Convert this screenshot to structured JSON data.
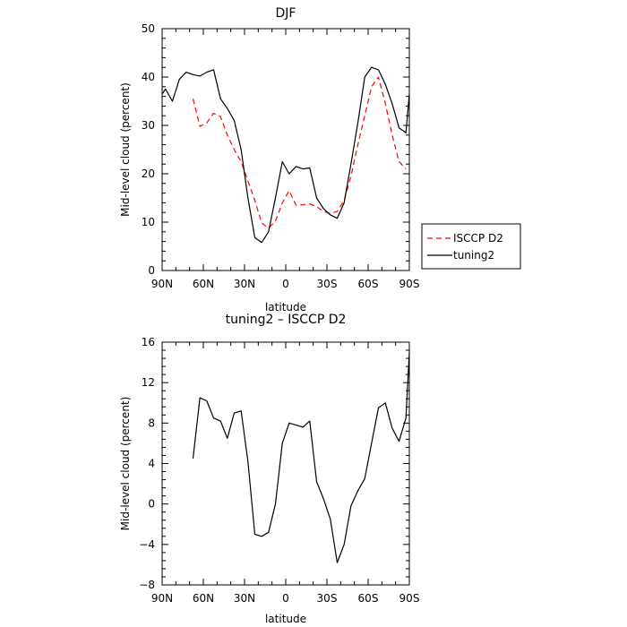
{
  "chart_data": [
    {
      "type": "line",
      "title": "DJF",
      "xlabel": "latitude",
      "ylabel": "Mid-level cloud (percent)",
      "xlim": [
        -90,
        90
      ],
      "ylim": [
        0,
        50
      ],
      "x_ticks": [
        -90,
        -60,
        -30,
        0,
        30,
        60,
        90
      ],
      "x_tick_labels": [
        "90N",
        "60N",
        "30N",
        "0",
        "30S",
        "60S",
        "90S"
      ],
      "y_ticks": [
        0,
        10,
        20,
        30,
        40,
        50
      ],
      "y_tick_labels": [
        "0",
        "10",
        "20",
        "30",
        "40",
        "50"
      ],
      "grid": false,
      "legend": {
        "position": "right",
        "entries": [
          "ISCCP D2",
          "tuning2"
        ]
      },
      "series": [
        {
          "name": "ISCCP D2",
          "color": "#ff0000",
          "line_style": "dashed",
          "x": [
            -67.5,
            -62.5,
            -57.5,
            -52.5,
            -47.5,
            -42.5,
            -37.5,
            -32.5,
            -27.5,
            -22.5,
            -17.5,
            -12.5,
            -7.5,
            -2.5,
            2.5,
            7.5,
            12.5,
            17.5,
            22.5,
            27.5,
            32.5,
            37.5,
            42.5,
            47.5,
            52.5,
            57.5,
            62.5,
            67.5,
            72.5,
            77.5,
            82.5,
            87.5
          ],
          "values": [
            35.5,
            29.8,
            30.5,
            32.5,
            31.8,
            28.0,
            25.0,
            22.5,
            18.5,
            14.5,
            9.8,
            8.8,
            10.2,
            14.0,
            16.5,
            13.5,
            13.6,
            13.8,
            13.2,
            12.2,
            11.8,
            12.2,
            14.5,
            19.5,
            26.0,
            32.0,
            38.0,
            40.0,
            34.5,
            28.0,
            22.5,
            21.0
          ]
        },
        {
          "name": "tuning2",
          "color": "#000000",
          "line_style": "solid",
          "x": [
            -90,
            -87.5,
            -82.5,
            -77.5,
            -72.5,
            -67.5,
            -62.5,
            -57.5,
            -52.5,
            -47.5,
            -42.5,
            -37.5,
            -32.5,
            -27.5,
            -22.5,
            -17.5,
            -12.5,
            -7.5,
            -2.5,
            2.5,
            7.5,
            12.5,
            17.5,
            22.5,
            27.5,
            32.5,
            37.5,
            42.5,
            47.5,
            52.5,
            57.5,
            62.5,
            67.5,
            72.5,
            77.5,
            82.5,
            87.5,
            90
          ],
          "values": [
            36.5,
            37.5,
            35.0,
            39.5,
            41.0,
            40.5,
            40.2,
            41.0,
            41.5,
            35.5,
            33.5,
            31.0,
            25.0,
            15.0,
            6.8,
            5.8,
            8.0,
            15.0,
            22.5,
            20.0,
            21.5,
            21.0,
            21.2,
            15.0,
            12.8,
            11.5,
            10.8,
            14.0,
            22.0,
            30.5,
            40.0,
            42.0,
            41.5,
            38.5,
            34.5,
            29.5,
            28.5,
            36.5
          ]
        }
      ]
    },
    {
      "type": "line",
      "title": "tuning2 – ISCCP D2",
      "xlabel": "latitude",
      "ylabel": "Mid-level cloud (percent)",
      "xlim": [
        -90,
        90
      ],
      "ylim": [
        -8,
        16
      ],
      "x_ticks": [
        -90,
        -60,
        -30,
        0,
        30,
        60,
        90
      ],
      "x_tick_labels": [
        "90N",
        "60N",
        "30N",
        "0",
        "30S",
        "60S",
        "90S"
      ],
      "y_ticks": [
        -8,
        -4,
        0,
        4,
        8,
        12,
        16
      ],
      "y_tick_labels": [
        "−8",
        "−4",
        "0",
        "4",
        "8",
        "12",
        "16"
      ],
      "grid": false,
      "series": [
        {
          "color": "#000000",
          "line_style": "solid",
          "x": [
            -67.5,
            -62.5,
            -57.5,
            -52.5,
            -47.5,
            -42.5,
            -37.5,
            -32.5,
            -27.5,
            -22.5,
            -17.5,
            -12.5,
            -7.5,
            -2.5,
            2.5,
            7.5,
            12.5,
            17.5,
            22.5,
            27.5,
            32.5,
            37.5,
            42.5,
            47.5,
            52.5,
            57.5,
            62.5,
            67.5,
            72.5,
            77.5,
            82.5,
            87.5,
            90
          ],
          "values": [
            4.5,
            10.5,
            10.2,
            8.5,
            8.2,
            6.5,
            9.0,
            9.2,
            4.2,
            -3.0,
            -3.2,
            -2.8,
            0.0,
            6.0,
            8.0,
            7.8,
            7.6,
            8.2,
            2.2,
            0.5,
            -1.5,
            -5.8,
            -4.0,
            -0.2,
            1.3,
            2.5,
            6.0,
            9.5,
            10.0,
            7.5,
            6.2,
            8.5,
            15.0
          ]
        }
      ]
    }
  ]
}
